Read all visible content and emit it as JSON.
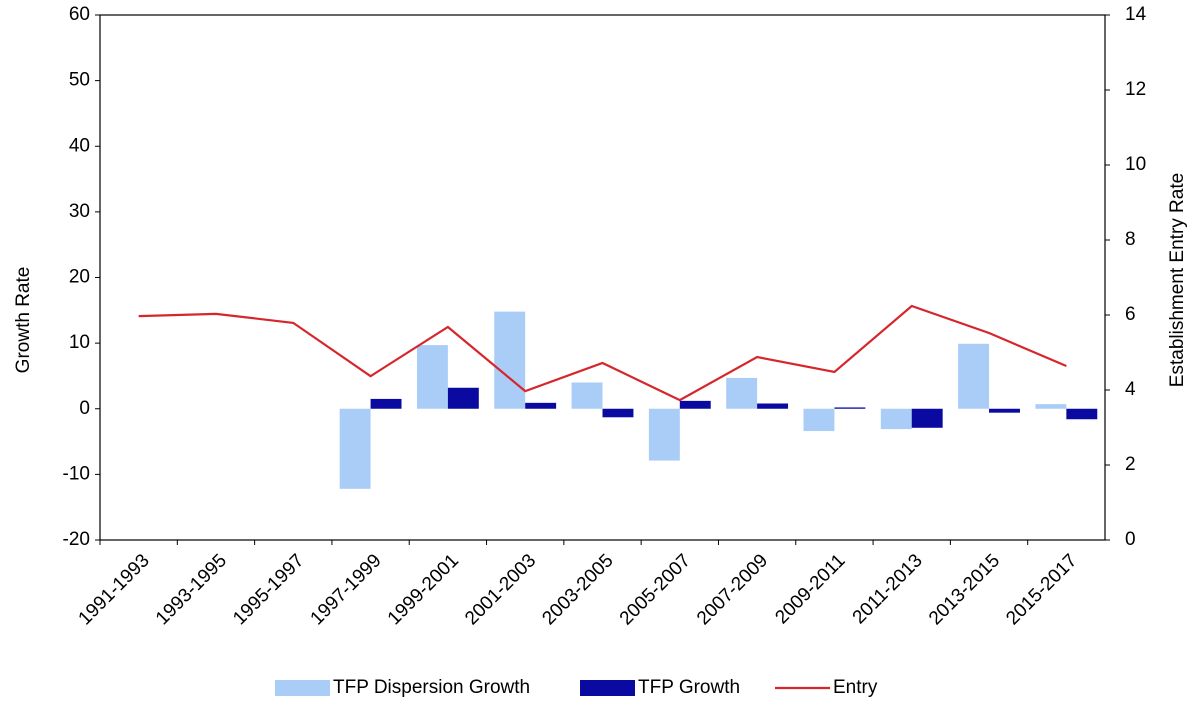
{
  "chart_data": {
    "type": "bar-line",
    "y_label": "Growth Rate",
    "y2_label": "Establishment Entry Rate",
    "categories": [
      "1991-1993",
      "1993-1995",
      "1995-1997",
      "1997-1999",
      "1999-2001",
      "2001-2003",
      "2003-2005",
      "2005-2007",
      "2007-2009",
      "2009-2011",
      "2011-2013",
      "2013-2015",
      "2015-2017"
    ],
    "series": [
      {
        "name": "TFP Dispersion Growth",
        "type": "bar",
        "color": "#a9cdf7",
        "values": [
          null,
          null,
          null,
          -12.2,
          9.7,
          14.8,
          4.0,
          -7.9,
          4.7,
          -3.4,
          -3.1,
          9.9,
          0.7
        ]
      },
      {
        "name": "TFP Growth",
        "type": "bar",
        "color": "#0a0aa0",
        "values": [
          null,
          null,
          null,
          1.5,
          3.2,
          0.9,
          -1.3,
          1.2,
          0.8,
          0.2,
          -2.9,
          -0.6,
          -1.6
        ]
      },
      {
        "name": "Entry",
        "type": "line",
        "axis": "y2",
        "color": "#d7262b",
        "values": [
          5.97,
          6.03,
          5.79,
          4.37,
          5.68,
          3.97,
          4.72,
          3.73,
          4.88,
          4.48,
          6.24,
          5.52,
          4.64
        ]
      }
    ],
    "ylim": [
      -20,
      60
    ],
    "yticks": [
      -20,
      -10,
      0,
      10,
      20,
      30,
      40,
      50,
      60
    ],
    "y2lim": [
      0,
      14
    ],
    "y2ticks": [
      0,
      2,
      4,
      6,
      8,
      10,
      12,
      14
    ],
    "legend_position": "bottom"
  }
}
